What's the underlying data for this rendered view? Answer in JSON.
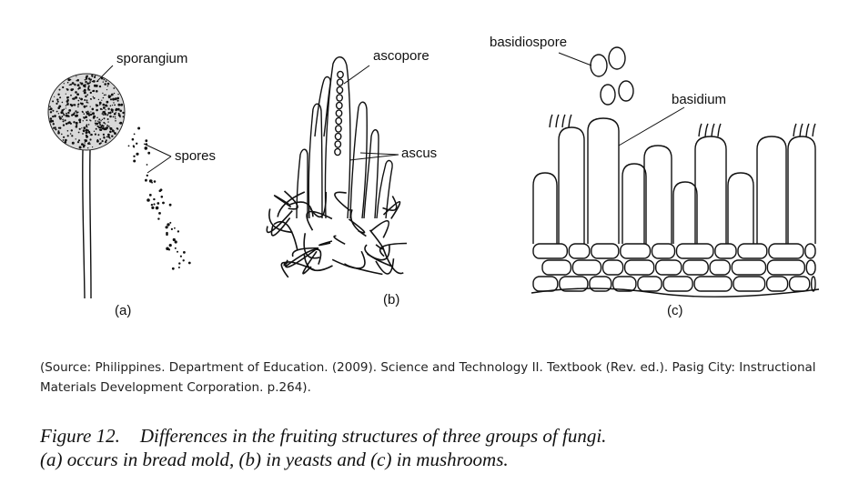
{
  "figure": {
    "panel_a": {
      "label": "(a)",
      "sporangium": "sporangium",
      "spores": "spores"
    },
    "panel_b": {
      "label": "(b)",
      "ascopore": "ascopore",
      "ascus": "ascus"
    },
    "panel_c": {
      "label": "(c)",
      "basidiospore": "basidiospore",
      "basidium": "basidium"
    }
  },
  "source": "(Source: Philippines. Department of Education. (2009). Science and Technology II. Textbook (Rev. ed.).  Pasig City: Instructional Materials Development Corporation. p.264).",
  "caption": {
    "number": "Figure 12.",
    "line1": "Differences in the fruiting structures of three groups of fungi.",
    "line2": "(a) occurs in bread mold, (b) in yeasts and (c) in mushrooms."
  }
}
